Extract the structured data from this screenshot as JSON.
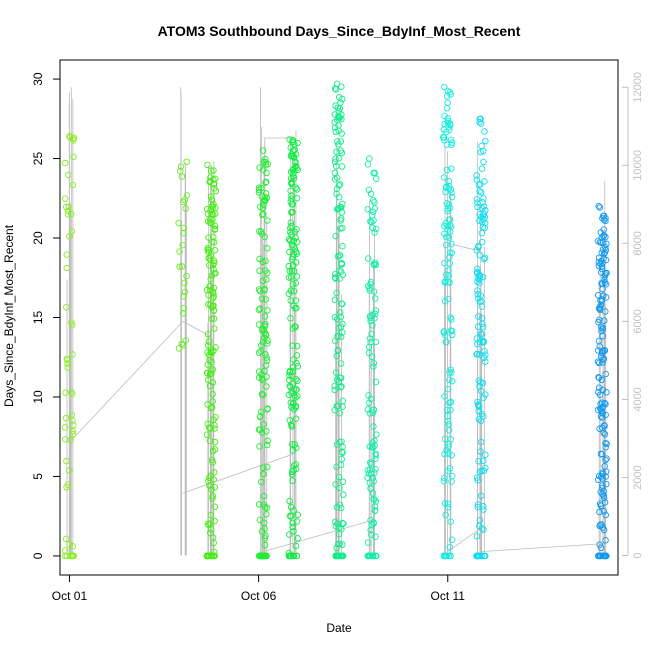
{
  "chart_data": {
    "type": "scatter",
    "title": "ATOM3 Southbound Days_Since_BdyInf_Most_Recent",
    "xlabel": "Date",
    "ylabel": "Days_Since_BdyInf_Most_Recent",
    "x_ticks": [
      "Oct 01",
      "Oct 06",
      "Oct 11"
    ],
    "y_ticks": [
      0,
      5,
      10,
      15,
      20,
      25,
      30
    ],
    "y2_ticks": [
      0,
      2000,
      4000,
      6000,
      8000,
      10000,
      12000
    ],
    "xlim": [
      "2023-09-30T18:00",
      "2023-10-15T12:00"
    ],
    "ylim": [
      -1.2,
      31.2
    ],
    "y2lim": [
      -500,
      12700
    ],
    "grid": false,
    "clusters": [
      {
        "x": "2023-10-01T00:00",
        "ymin": 0,
        "ymax": 26.4,
        "n": 55,
        "color": "#88ee22"
      },
      {
        "x": "2023-10-04T00:00",
        "ymin": 12.6,
        "ymax": 24.8,
        "n": 25,
        "color": "#66ee22"
      },
      {
        "x": "2023-10-04T18:00",
        "ymin": 0,
        "ymax": 24.6,
        "n": 150,
        "color": "#44ee11"
      },
      {
        "x": "2023-10-06T03:00",
        "ymin": 0,
        "ymax": 25.5,
        "n": 130,
        "color": "#22ee33"
      },
      {
        "x": "2023-10-06T22:00",
        "ymin": 0,
        "ymax": 26.2,
        "n": 170,
        "color": "#11ee44"
      },
      {
        "x": "2023-10-08T03:00",
        "ymin": 0,
        "ymax": 29.7,
        "n": 150,
        "color": "#11ee88"
      },
      {
        "x": "2023-10-09T00:00",
        "ymin": 0,
        "ymax": 25.0,
        "n": 110,
        "color": "#11eeaa"
      },
      {
        "x": "2023-10-11T00:00",
        "ymin": 0,
        "ymax": 29.5,
        "n": 130,
        "color": "#11eedd"
      },
      {
        "x": "2023-10-11T21:00",
        "ymin": 0,
        "ymax": 27.5,
        "n": 140,
        "color": "#11ddee"
      },
      {
        "x": "2023-10-15T02:00",
        "ymin": 0,
        "ymax": 22.0,
        "n": 170,
        "color": "#1199ee"
      }
    ],
    "line_series": {
      "color": "#bbbbbb",
      "spikes": [
        {
          "x": "2023-10-01T00:00",
          "max": 12000
        },
        {
          "x": "2023-10-04T00:00",
          "max": 12000
        },
        {
          "x": "2023-10-04T18:00",
          "max": 10100
        },
        {
          "x": "2023-10-06T03:00",
          "max": 12000
        },
        {
          "x": "2023-10-06T22:00",
          "max": 10900
        },
        {
          "x": "2023-10-08T03:00",
          "max": 10600
        },
        {
          "x": "2023-10-09T00:00",
          "max": 9100
        },
        {
          "x": "2023-10-11T00:00",
          "max": 10500
        },
        {
          "x": "2023-10-11T21:00",
          "max": 10600
        },
        {
          "x": "2023-10-15T02:00",
          "max": 9600
        }
      ],
      "connectors": [
        {
          "x1": "2023-10-01T00:00",
          "y1": 2900,
          "x2": "2023-10-04T00:00",
          "y2": 6000
        },
        {
          "x1": "2023-10-04T00:00",
          "y1": 6000,
          "x2": "2023-10-04T18:00",
          "y2": 5600
        },
        {
          "x1": "2023-10-04T00:00",
          "y1": 1600,
          "x2": "2023-10-06T22:00",
          "y2": 2600
        },
        {
          "x1": "2023-10-06T03:00",
          "y1": 10700,
          "x2": "2023-10-06T22:00",
          "y2": 10700
        },
        {
          "x1": "2023-10-06T03:00",
          "y1": 100,
          "x2": "2023-10-09T00:00",
          "y2": 900
        },
        {
          "x1": "2023-10-11T00:00",
          "y1": 8000,
          "x2": "2023-10-11T21:00",
          "y2": 7800
        },
        {
          "x1": "2023-10-11T00:00",
          "y1": 100,
          "x2": "2023-10-11T21:00",
          "y2": 700
        },
        {
          "x1": "2023-10-11T21:00",
          "y1": 100,
          "x2": "2023-10-15T02:00",
          "y2": 300
        }
      ]
    }
  }
}
